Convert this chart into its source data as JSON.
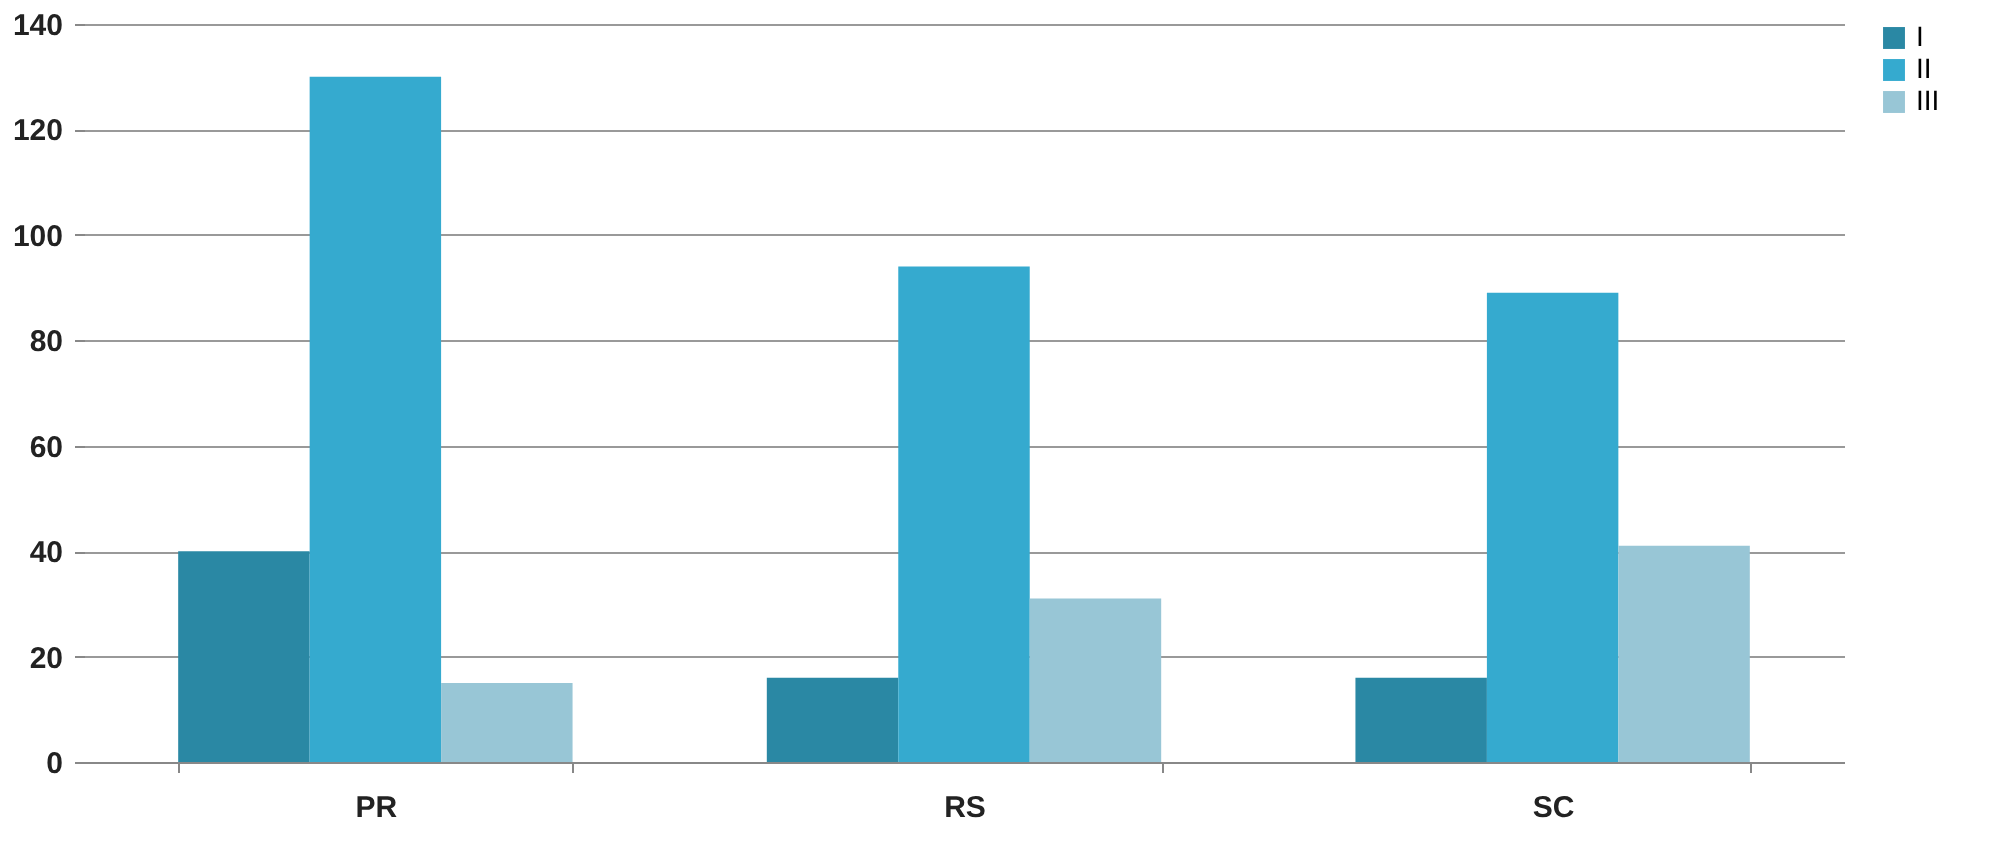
{
  "chart_data": {
    "type": "bar",
    "categories": [
      "PR",
      "RS",
      "SC"
    ],
    "series": [
      {
        "name": "I",
        "color": "#2a88a4",
        "values": [
          40,
          16,
          16
        ]
      },
      {
        "name": "II",
        "color": "#35aacf",
        "values": [
          130,
          94,
          89
        ]
      },
      {
        "name": "III",
        "color": "#98c6d6",
        "values": [
          15,
          31,
          41
        ]
      }
    ],
    "ylim": [
      0,
      140
    ],
    "yticks": [
      0,
      20,
      40,
      60,
      80,
      100,
      120,
      140
    ],
    "grid": "y",
    "legend": "right"
  }
}
